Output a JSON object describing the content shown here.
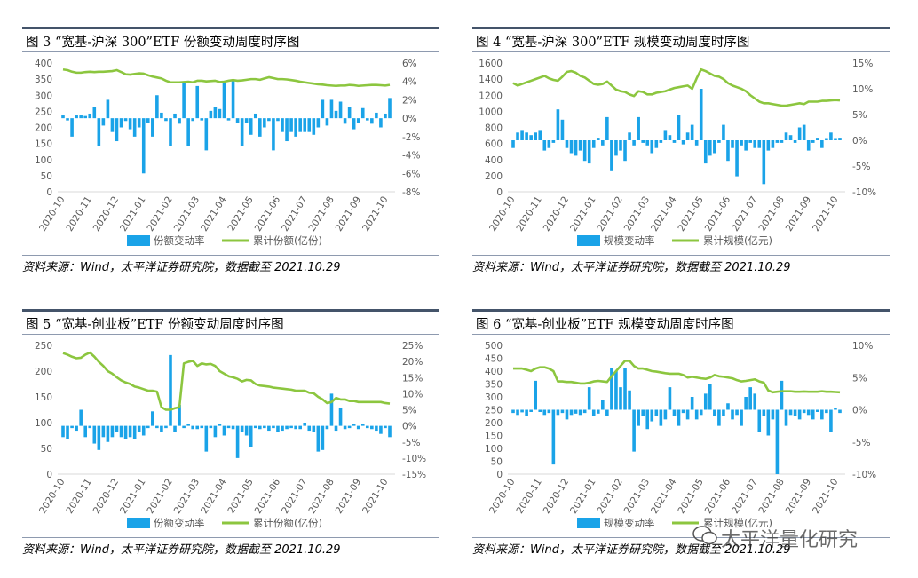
{
  "source_text": "资料来源：Wind，太平洋证券研究院，数据截至 2021.10.29",
  "watermark": "太平洋量化研究",
  "colors": {
    "bar": "#1aa3e8",
    "line": "#8cc63f",
    "axis": "#d9d9d9",
    "text": "#595959"
  },
  "chart_data": [
    {
      "type": "bar+line",
      "title": "图 3 “宽基-沪深 300”ETF 份额变动周度时序图",
      "x_labels": [
        "2020-10",
        "2020-11",
        "2020-12",
        "2021-01",
        "2021-02",
        "2021-03",
        "2021-04",
        "2021-05",
        "2021-06",
        "2021-07",
        "2021-08",
        "2021-09",
        "2021-10"
      ],
      "left_ticks": [
        "0",
        "50",
        "100",
        "150",
        "200",
        "250",
        "300",
        "350",
        "400"
      ],
      "right_ticks": [
        "-8%",
        "-6%",
        "-4%",
        "-2%",
        "0%",
        "2%",
        "4%",
        "6%"
      ],
      "left_range": [
        0,
        400
      ],
      "right_range": [
        -8,
        6
      ],
      "bar_series_name": "份额变动率",
      "line_series_name": "累计份额(亿份)",
      "bar_values": [
        0.3,
        -0.2,
        -2.0,
        0.3,
        0.3,
        0.2,
        0.5,
        1.2,
        -3.0,
        -0.8,
        2.0,
        -1.5,
        -2.5,
        -1.0,
        -0.3,
        -1.2,
        -2.0,
        -1.0,
        -6.0,
        -0.5,
        -2.0,
        2.5,
        0.6,
        -0.3,
        -3.0,
        0.5,
        -0.6,
        3.8,
        -3.0,
        -0.3,
        3.5,
        -0.2,
        -3.5,
        0.8,
        1.2,
        1.0,
        4.0,
        -0.2,
        4.2,
        -0.5,
        -3.0,
        -0.5,
        -1.8,
        0.5,
        -2.0,
        -1.0,
        -0.3,
        -3.5,
        -0.3,
        -1.5,
        -2.5,
        -1.5,
        -2.0,
        -1.5,
        -1.5,
        -1.5,
        -1.8,
        -1.0,
        2.0,
        -0.8,
        2.0,
        0.8,
        1.8,
        -0.6,
        1.2,
        -1.2,
        -0.5,
        1.1,
        -0.2,
        -0.6,
        0.6,
        -1.0,
        0.5,
        2.2
      ],
      "line_values": [
        380,
        378,
        373,
        370,
        370,
        372,
        373,
        372,
        373,
        373,
        374,
        375,
        378,
        372,
        365,
        364,
        366,
        368,
        367,
        362,
        358,
        355,
        352,
        345,
        340,
        340,
        340,
        341,
        342,
        340,
        345,
        345,
        343,
        344,
        345,
        341,
        342,
        345,
        347,
        345,
        346,
        348,
        350,
        350,
        348,
        352,
        356,
        353,
        350,
        350,
        349,
        347,
        345,
        342,
        340,
        338,
        336,
        334,
        333,
        331,
        330,
        329,
        330,
        330,
        332,
        331,
        329,
        330,
        331,
        332,
        332,
        331,
        330,
        332
      ]
    },
    {
      "type": "bar+line",
      "title": "图 4 “宽基-沪深 300”ETF 规模变动周度时序图",
      "x_labels": [
        "2020-10",
        "2020-11",
        "2020-12",
        "2021-01",
        "2021-02",
        "2021-03",
        "2021-04",
        "2021-05",
        "2021-06",
        "2021-07",
        "2021-08",
        "2021-09",
        "2021-10"
      ],
      "left_ticks": [
        "0",
        "200",
        "400",
        "600",
        "800",
        "1000",
        "1200",
        "1400",
        "1600"
      ],
      "right_ticks": [
        "-10%",
        "-5%",
        "0%",
        "5%",
        "10%",
        "15%"
      ],
      "left_range": [
        0,
        1600
      ],
      "right_range": [
        -10,
        15
      ],
      "bar_series_name": "规模变动率",
      "line_series_name": "累计规模(亿元)",
      "bar_values": [
        -1.5,
        1.5,
        2.0,
        1.5,
        1.0,
        1.5,
        2.0,
        -2.0,
        -1.5,
        -0.5,
        6.0,
        4.0,
        -1.5,
        -2.5,
        -3.0,
        -2.0,
        -4.0,
        -4.5,
        -1.5,
        0.5,
        -1.0,
        4.5,
        -6.0,
        -3.0,
        -2.0,
        -4.0,
        1.5,
        -1.0,
        4.5,
        -0.5,
        -1.0,
        -2.5,
        -1.5,
        -0.5,
        2.0,
        1.0,
        -0.5,
        5.0,
        -0.8,
        1.5,
        3.0,
        -1.0,
        10.0,
        -4.5,
        -3.0,
        -2.5,
        -0.5,
        3.0,
        -4.0,
        -1.5,
        -7.0,
        -1.0,
        -2.0,
        -0.5,
        -1.5,
        -1.5,
        -8.5,
        -2.0,
        -1.5,
        -0.5,
        -0.5,
        1.5,
        1.0,
        -0.5,
        2.5,
        3.0,
        -2.0,
        -0.5,
        0.5,
        -1.5,
        0.3,
        1.5,
        0.2,
        0.5
      ],
      "line_values": [
        1350,
        1320,
        1340,
        1360,
        1380,
        1400,
        1420,
        1440,
        1410,
        1390,
        1380,
        1430,
        1490,
        1500,
        1480,
        1440,
        1420,
        1380,
        1340,
        1330,
        1340,
        1370,
        1320,
        1270,
        1250,
        1240,
        1210,
        1190,
        1250,
        1240,
        1210,
        1210,
        1230,
        1240,
        1250,
        1270,
        1290,
        1300,
        1310,
        1320,
        1280,
        1410,
        1520,
        1500,
        1470,
        1440,
        1430,
        1400,
        1350,
        1320,
        1300,
        1280,
        1250,
        1200,
        1160,
        1120,
        1100,
        1100,
        1090,
        1080,
        1070,
        1070,
        1080,
        1090,
        1100,
        1090,
        1120,
        1120,
        1120,
        1130,
        1130,
        1135,
        1140,
        1135
      ]
    },
    {
      "type": "bar+line",
      "title": "图 5 “宽基-创业板”ETF 份额变动周度时序图",
      "x_labels": [
        "2020-10",
        "2020-11",
        "2020-12",
        "2021-01",
        "2021-02",
        "2021-03",
        "2021-04",
        "2021-05",
        "2021-06",
        "2021-07",
        "2021-08",
        "2021-09",
        "2021-10"
      ],
      "left_ticks": [
        "0",
        "50",
        "100",
        "150",
        "200",
        "250"
      ],
      "right_ticks": [
        "-15%",
        "-10%",
        "-5%",
        "0%",
        "5%",
        "10%",
        "15%",
        "20%",
        "25%"
      ],
      "left_range": [
        0,
        250
      ],
      "right_range": [
        -15,
        25
      ],
      "bar_series_name": "份额变动率",
      "line_series_name": "累计份额(亿份)",
      "bar_values": [
        -3.5,
        -4.0,
        -0.5,
        -1.5,
        5.0,
        -3.5,
        -0.5,
        -5.5,
        -7.5,
        -3.5,
        -5.0,
        -3.5,
        -2.0,
        -3.5,
        -4.0,
        -3.5,
        -4.0,
        -2.0,
        -3.0,
        -0.5,
        4.5,
        -0.5,
        -2.0,
        -0.5,
        22.0,
        -2.0,
        6.5,
        -0.5,
        0.5,
        -1.0,
        -1.0,
        -0.5,
        -8.0,
        -0.5,
        -3.5,
        0.5,
        -3.0,
        -0.5,
        -1.0,
        -10.0,
        -2.0,
        -3.0,
        -6.5,
        -0.5,
        -1.0,
        -0.5,
        -1.5,
        -0.5,
        -2.0,
        -1.5,
        -1.0,
        -0.5,
        -1.0,
        -1.0,
        1.0,
        -1.5,
        -2.0,
        -8.0,
        -7.5,
        -1.0,
        10.0,
        -1.5,
        5.5,
        -1.0,
        -0.5,
        0.5,
        -1.0,
        0.5,
        -0.5,
        -1.0,
        -1.5,
        -2.5,
        -0.5,
        -3.5
      ],
      "line_values": [
        235,
        232,
        228,
        225,
        226,
        232,
        236,
        228,
        218,
        210,
        200,
        195,
        188,
        182,
        178,
        175,
        170,
        168,
        165,
        162,
        162,
        160,
        130,
        125,
        125,
        128,
        130,
        215,
        218,
        220,
        210,
        215,
        213,
        214,
        210,
        200,
        195,
        190,
        188,
        185,
        180,
        183,
        182,
        175,
        172,
        171,
        170,
        168,
        167,
        166,
        165,
        164,
        162,
        162,
        162,
        158,
        157,
        150,
        145,
        138,
        140,
        148,
        145,
        145,
        142,
        142,
        140,
        140,
        140,
        140,
        140,
        140,
        138,
        137
      ]
    },
    {
      "type": "bar+line",
      "title": "图 6 “宽基-创业板”ETF 规模变动周度时序图",
      "x_labels": [
        "2020-10",
        "2020-11",
        "2020-12",
        "2021-01",
        "2021-02",
        "2021-03",
        "2021-04",
        "2021-05",
        "2021-06",
        "2021-07",
        "2021-08",
        "2021-09",
        "2021-10"
      ],
      "left_ticks": [
        "0",
        "50",
        "100",
        "150",
        "200",
        "250",
        "300",
        "350",
        "400",
        "450",
        "500"
      ],
      "right_ticks": [
        "-10%",
        "-5%",
        "0%",
        "5%",
        "10%"
      ],
      "left_range": [
        0,
        500
      ],
      "right_range": [
        -10,
        10
      ],
      "bar_series_name": "规模变动率",
      "line_series_name": "累计规模(亿元)",
      "bar_values": [
        -0.5,
        -0.8,
        -0.4,
        -1.0,
        -0.3,
        4.5,
        -0.2,
        -0.8,
        -0.5,
        -8.5,
        -0.8,
        -0.5,
        -1.5,
        -0.8,
        -0.6,
        -0.8,
        -0.5,
        3.5,
        -1.0,
        -0.6,
        1.5,
        -1.0,
        6.5,
        6.0,
        3.5,
        6.5,
        3.0,
        -6.5,
        -2.5,
        -1.0,
        -3.0,
        -1.8,
        -1.0,
        -2.5,
        -1.5,
        3.5,
        -1.0,
        -2.5,
        -0.5,
        -1.5,
        2.0,
        -1.5,
        -0.8,
        2.5,
        4.0,
        -1.0,
        -2.5,
        -1.0,
        1.0,
        -1.5,
        -0.8,
        -2.5,
        2.0,
        3.5,
        2.5,
        -3.5,
        -1.0,
        -4.0,
        -1.5,
        -10.0,
        4.5,
        -2.5,
        -0.8,
        -1.0,
        -1.5,
        -0.5,
        -0.8,
        -1.5,
        -0.3,
        -1.5,
        -0.5,
        -3.5,
        0.2,
        -0.5
      ],
      "line_values": [
        410,
        410,
        410,
        405,
        400,
        410,
        415,
        415,
        410,
        400,
        360,
        360,
        358,
        358,
        355,
        352,
        352,
        355,
        360,
        362,
        360,
        358,
        380,
        400,
        420,
        440,
        440,
        420,
        410,
        410,
        405,
        400,
        398,
        395,
        392,
        390,
        390,
        390,
        385,
        375,
        378,
        375,
        372,
        370,
        375,
        385,
        380,
        378,
        375,
        372,
        365,
        360,
        362,
        365,
        368,
        360,
        355,
        325,
        318,
        320,
        322,
        322,
        322,
        320,
        320,
        321,
        320,
        320,
        320,
        322,
        320,
        320,
        319,
        318
      ]
    }
  ]
}
